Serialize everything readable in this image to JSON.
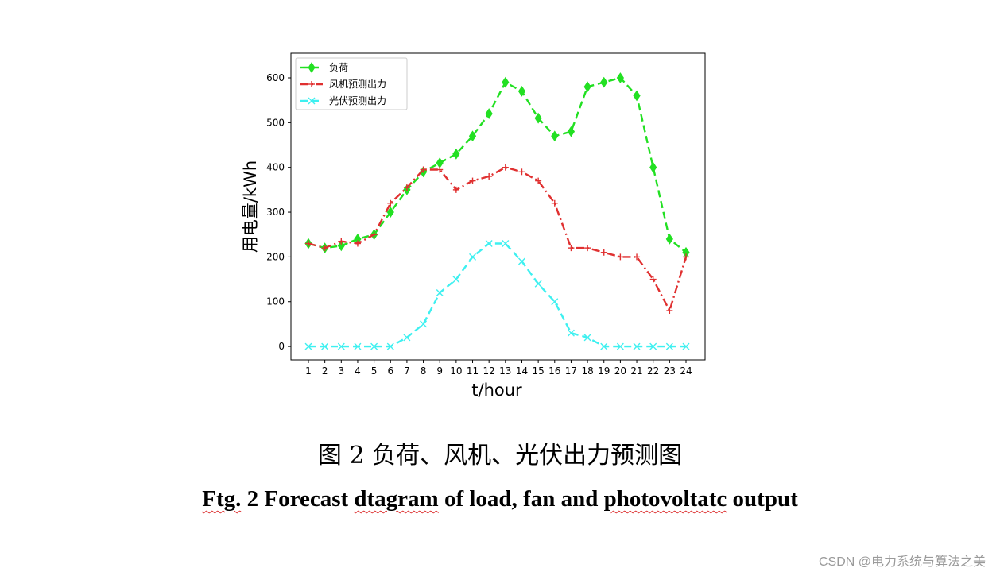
{
  "chart_data": {
    "type": "line",
    "xlabel": "t/hour",
    "ylabel": "用电量/kWh",
    "categories": [
      "1",
      "2",
      "3",
      "4",
      "5",
      "6",
      "7",
      "8",
      "9",
      "10",
      "11",
      "12",
      "13",
      "14",
      "15",
      "16",
      "17",
      "18",
      "19",
      "20",
      "21",
      "22",
      "23",
      "24"
    ],
    "ylim": [
      -30,
      655
    ],
    "yticks": [
      0,
      100,
      200,
      300,
      400,
      500,
      600
    ],
    "grid": false,
    "legend_position": "top-left",
    "series": [
      {
        "name": "负荷",
        "color": "#22e022",
        "linestyle": "dashed",
        "marker": "diamond",
        "values": [
          230,
          220,
          225,
          240,
          250,
          300,
          350,
          390,
          410,
          430,
          470,
          520,
          590,
          570,
          510,
          470,
          480,
          580,
          590,
          600,
          560,
          400,
          240,
          210
        ]
      },
      {
        "name": "风机预测出力",
        "color": "#e03030",
        "linestyle": "dashdot",
        "marker": "plus",
        "values": [
          230,
          220,
          235,
          230,
          250,
          320,
          355,
          395,
          395,
          350,
          370,
          380,
          400,
          390,
          370,
          320,
          220,
          220,
          210,
          200,
          200,
          150,
          80,
          200
        ]
      },
      {
        "name": "光伏预测出力",
        "color": "#3ef0f0",
        "linestyle": "dashed",
        "marker": "x",
        "values": [
          0,
          0,
          0,
          0,
          0,
          0,
          20,
          50,
          120,
          150,
          200,
          230,
          230,
          190,
          140,
          100,
          30,
          20,
          0,
          0,
          0,
          0,
          0,
          0
        ]
      }
    ]
  },
  "caption": {
    "chinese": "图 2  负荷、风机、光伏出力预测图",
    "english_parts": [
      "Ftg.",
      " 2 Forecast ",
      "dtagram",
      " of load, fan and ",
      "photovoltatc",
      " output"
    ]
  },
  "watermark": "CSDN @电力系统与算法之美"
}
